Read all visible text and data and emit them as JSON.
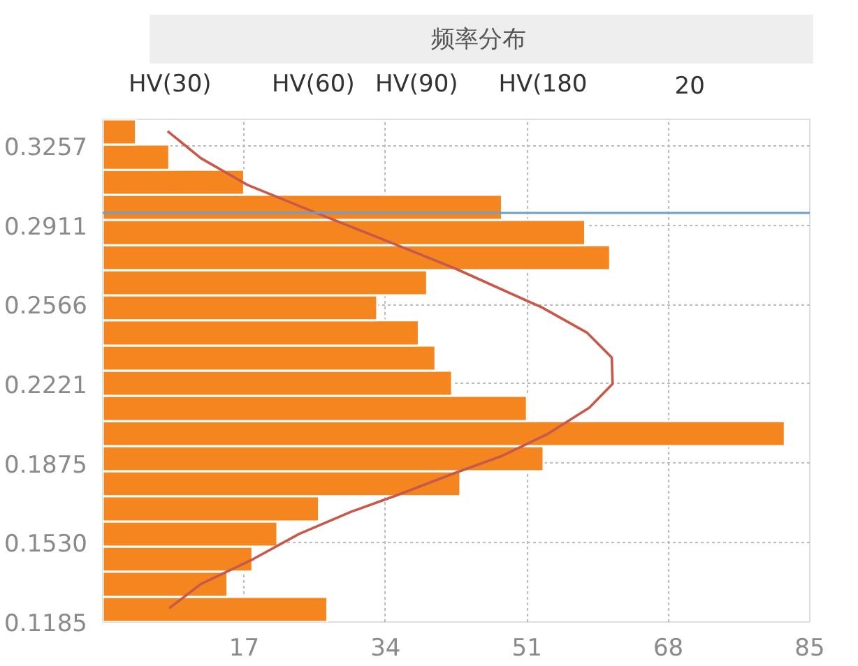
{
  "chart_data": {
    "type": "histogram",
    "title": "频率分布",
    "orientation": "horizontal",
    "annotations": [
      "HV(30)",
      "HV(60)",
      "HV(90)",
      "HV(180",
      "20"
    ],
    "bins": [
      0.1185,
      0.1294,
      0.1404,
      0.1513,
      0.1622,
      0.1732,
      0.1841,
      0.195,
      0.2059,
      0.2169,
      0.2278,
      0.2387,
      0.2497,
      0.2606,
      0.2715,
      0.2824,
      0.2934,
      0.3043,
      0.3152,
      0.3262,
      0.3371
    ],
    "series": [
      {
        "color": "#f5861f",
        "values": [
          27,
          15,
          18,
          21,
          26,
          43,
          53,
          82,
          51,
          42,
          40,
          38,
          33,
          39,
          61,
          58,
          48,
          17,
          8,
          4
        ]
      },
      {
        "type": "line",
        "color": "#c8584a",
        "x": [
          0.1245,
          0.135,
          0.1459,
          0.1568,
          0.1665,
          0.1737,
          0.1834,
          0.1906,
          0.2003,
          0.2117,
          0.2221,
          0.2335,
          0.2444,
          0.2553,
          0.2722,
          0.2843,
          0.2964,
          0.3086,
          0.3202,
          0.332
        ],
        "values": [
          8.0,
          11.8,
          18.1,
          23.6,
          29.9,
          35.4,
          42.4,
          47.9,
          53.5,
          58.5,
          61.3,
          61.2,
          58.2,
          52.8,
          42.4,
          34.1,
          25.7,
          17.4,
          11.8,
          7.8
        ]
      }
    ],
    "ref_lines": [
      {
        "axis": "y",
        "value": 0.2964,
        "color": "#6d9ecc"
      }
    ],
    "xlim": [
      0,
      85
    ],
    "xticks": [
      17,
      34,
      51,
      68,
      85
    ],
    "ylim": [
      0.1185,
      0.3371
    ],
    "yticks": [
      {
        "value": 0.1185,
        "label": "0.1185"
      },
      {
        "value": 0.153,
        "label": "0.1530"
      },
      {
        "value": 0.1875,
        "label": "0.1875"
      },
      {
        "value": 0.2221,
        "label": "0.2221"
      },
      {
        "value": 0.2566,
        "label": "0.2566"
      },
      {
        "value": 0.2911,
        "label": "0.2911"
      },
      {
        "value": 0.3257,
        "label": "0.3257"
      }
    ],
    "grid": true,
    "marker": "none",
    "line_style": "solid"
  }
}
